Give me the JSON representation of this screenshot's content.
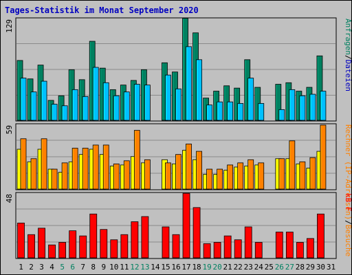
{
  "title": "Tages-Statistik im Monat September 2020",
  "chart_data": [
    {
      "type": "bar",
      "panel": "top",
      "ymax_label": "129",
      "ylim": [
        0,
        129
      ],
      "categories": [
        "1",
        "2",
        "3",
        "4",
        "5",
        "6",
        "7",
        "8",
        "9",
        "10",
        "11",
        "12",
        "13",
        "14",
        "15",
        "16",
        "17",
        "18",
        "19",
        "20",
        "21",
        "22",
        "23",
        "24",
        "25",
        "26",
        "27",
        "28",
        "29",
        "30",
        "31"
      ],
      "weekend_days": [
        "5",
        "6",
        "12",
        "13",
        "19",
        "20",
        "26",
        "27"
      ],
      "series": [
        {
          "name": "Anfragen",
          "color": "#008060",
          "values": [
            78,
            54,
            72,
            26,
            32,
            66,
            53,
            103,
            68,
            40,
            46,
            52,
            66,
            0,
            75,
            63,
            133,
            114,
            29,
            38,
            45,
            42,
            79,
            43,
            0,
            47,
            49,
            38,
            43,
            84,
            0
          ]
        },
        {
          "name": "Dateien",
          "color": "#00c0ff",
          "values": [
            55,
            37,
            51,
            21,
            19,
            40,
            31,
            69,
            49,
            32,
            37,
            47,
            46,
            0,
            59,
            41,
            96,
            79,
            20,
            24,
            24,
            22,
            55,
            22,
            0,
            14,
            40,
            32,
            34,
            38,
            0
          ]
        }
      ],
      "legend_parts": [
        {
          "text": "Anfragen",
          "color": "#008060"
        },
        {
          "text": "/",
          "color": "#000000"
        },
        {
          "text": "Dateien",
          "color": "#0000c0"
        }
      ],
      "grid": true
    },
    {
      "type": "bar",
      "panel": "middle",
      "ymax_label": "59",
      "ylim": [
        0,
        59
      ],
      "series": [
        {
          "name": "Rechner (IP-Adressen)",
          "color": "#ffff00",
          "values": [
            38,
            26,
            38,
            19,
            16,
            26,
            33,
            38,
            33,
            22,
            23,
            31,
            25,
            0,
            28,
            24,
            37,
            28,
            14,
            14,
            18,
            21,
            22,
            23,
            0,
            29,
            29,
            24,
            20,
            36,
            0
          ]
        },
        {
          "name": "Besuche",
          "color": "#ff8000",
          "values": [
            48,
            29,
            48,
            19,
            25,
            39,
            39,
            42,
            42,
            24,
            27,
            56,
            28,
            0,
            25,
            33,
            43,
            36,
            19,
            19,
            23,
            25,
            28,
            25,
            0,
            29,
            46,
            26,
            30,
            61,
            0
          ]
        }
      ],
      "legend_parts": [
        {
          "text": "Rechner",
          "color": "#ff8000"
        },
        {
          "text": "(IP-Adressen)",
          "color": "#ff8000"
        },
        {
          "text": "/",
          "color": "#000000"
        },
        {
          "text": "Besuche",
          "color": "#ff8000"
        }
      ],
      "grid": true
    },
    {
      "type": "bar",
      "panel": "bottom",
      "ymax_label": "48",
      "ylim": [
        0,
        48
      ],
      "series": [
        {
          "name": "kB F",
          "color": "#ff0000",
          "values": [
            27,
            18,
            23,
            10,
            12,
            21,
            17,
            34,
            22,
            14,
            18,
            28,
            32,
            0,
            24,
            18,
            50,
            39,
            11,
            12,
            17,
            14,
            24,
            12,
            0,
            20,
            20,
            12,
            15,
            34,
            0
          ]
        }
      ],
      "legend_parts": [
        {
          "text": "kB F",
          "color": "#ff0000"
        }
      ],
      "grid": true
    }
  ],
  "colors": {
    "background": "#c0c0c0",
    "plot_background": "#c0c0c0",
    "weekday_label": "#000000",
    "weekend_label": "#008060",
    "title": "#0000c0"
  }
}
